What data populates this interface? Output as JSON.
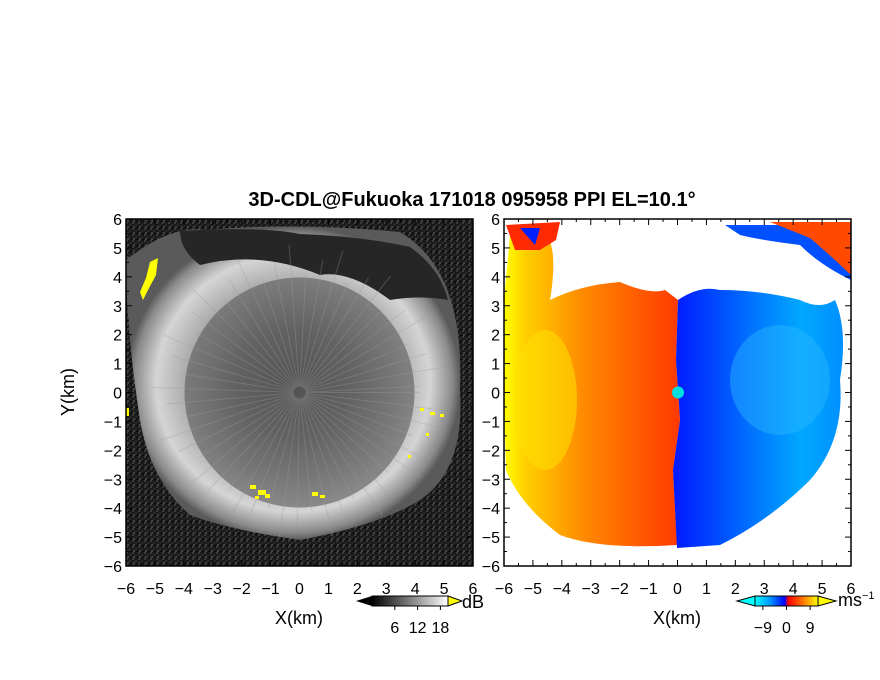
{
  "chart_data": {
    "title": "3D-CDL@Fukuoka 171018 095958 PPI EL=10.1°",
    "panels": [
      {
        "type": "heatmap",
        "quantity": "SNR",
        "xlabel": "X(km)",
        "ylabel": "Y(km)",
        "xlim": [
          -6,
          6
        ],
        "ylim": [
          -6,
          6
        ],
        "x_ticks": [
          "−6",
          "−5",
          "−4",
          "−3",
          "−2",
          "−1",
          "0",
          "1",
          "2",
          "3",
          "4",
          "5",
          "6"
        ],
        "y_ticks": [
          "6",
          "5",
          "4",
          "3",
          "2",
          "1",
          "0",
          "−1",
          "−2",
          "−3",
          "−4",
          "−5",
          "−6"
        ],
        "colorbar": {
          "colormap": "grayscale",
          "overflow_color": "#ffff00",
          "tick_labels": [
            "6",
            "12",
            "18"
          ],
          "tick_values": [
            6,
            12,
            18
          ],
          "range": [
            0,
            20
          ],
          "unit": "dB"
        }
      },
      {
        "type": "heatmap",
        "quantity": "Doppler velocity",
        "xlabel": "X(km)",
        "ylabel": "",
        "xlim": [
          -6,
          6
        ],
        "ylim": [
          -6,
          6
        ],
        "x_ticks": [
          "−6",
          "−5",
          "−4",
          "−3",
          "−2",
          "−1",
          "0",
          "1",
          "2",
          "3",
          "4",
          "5",
          "6"
        ],
        "y_ticks": [
          "6",
          "5",
          "4",
          "3",
          "2",
          "1",
          "0",
          "−1",
          "−2",
          "−3",
          "−4",
          "−5",
          "−6"
        ],
        "colorbar": {
          "colormap": "cyan-blue-red-yellow",
          "tick_labels": [
            "−9",
            "0",
            "9"
          ],
          "tick_values": [
            -9,
            0,
            9
          ],
          "range": [
            -12,
            12
          ],
          "unit": "ms",
          "unit_exponent": "−1"
        }
      }
    ]
  }
}
